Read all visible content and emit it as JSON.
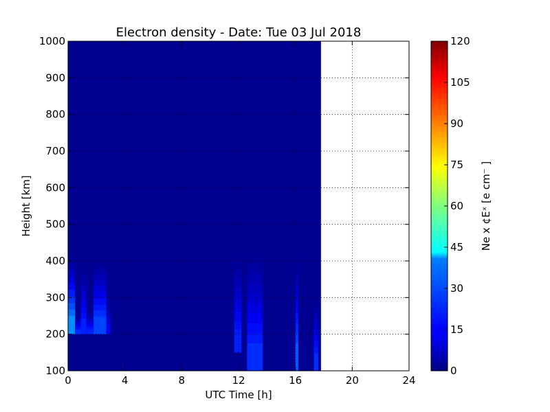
{
  "chart_data": {
    "type": "heatmap",
    "title": "Electron density - Date: Tue 03 Jul 2018",
    "xlabel": "UTC Time [h]",
    "ylabel": "Height [km]",
    "colorbar_label": "Ne x ¢Eˣ  [e cm⁻ ]",
    "xlim": [
      0,
      24
    ],
    "ylim": [
      100,
      1000
    ],
    "xticks": [
      "0",
      "4",
      "8",
      "12",
      "16",
      "20",
      "24"
    ],
    "yticks": [
      "100",
      "200",
      "300",
      "400",
      "500",
      "600",
      "700",
      "800",
      "900",
      "1000"
    ],
    "colorbar_range": [
      0,
      120
    ],
    "colorbar_ticks": [
      "0",
      "15",
      "30",
      "45",
      "60",
      "75",
      "90",
      "105",
      "120"
    ],
    "colormap": "jet",
    "grid": true,
    "data_end_hour": 17.8,
    "background_value": 2,
    "enhancements": [
      {
        "x0": 0.0,
        "x1": 0.5,
        "y0": 200,
        "y1": 410,
        "peak": 35
      },
      {
        "x0": 0.5,
        "x1": 0.9,
        "y0": 200,
        "y1": 250,
        "peak": 22
      },
      {
        "x0": 0.9,
        "x1": 1.3,
        "y0": 200,
        "y1": 380,
        "peak": 20
      },
      {
        "x0": 1.3,
        "x1": 1.8,
        "y0": 200,
        "y1": 260,
        "peak": 20
      },
      {
        "x0": 1.8,
        "x1": 2.7,
        "y0": 200,
        "y1": 400,
        "peak": 25
      },
      {
        "x0": 2.7,
        "x1": 3.0,
        "y0": 200,
        "y1": 300,
        "peak": 14
      },
      {
        "x0": 11.7,
        "x1": 12.2,
        "y0": 150,
        "y1": 420,
        "peak": 20
      },
      {
        "x0": 12.6,
        "x1": 13.7,
        "y0": 100,
        "y1": 420,
        "peak": 22
      },
      {
        "x0": 16.0,
        "x1": 16.2,
        "y0": 100,
        "y1": 420,
        "peak": 28
      },
      {
        "x0": 17.3,
        "x1": 17.6,
        "y0": 100,
        "y1": 300,
        "peak": 22
      }
    ]
  },
  "colors": {
    "background": "#ffffff",
    "jet_low": "#00007f",
    "jet_high": "#7f0000"
  }
}
